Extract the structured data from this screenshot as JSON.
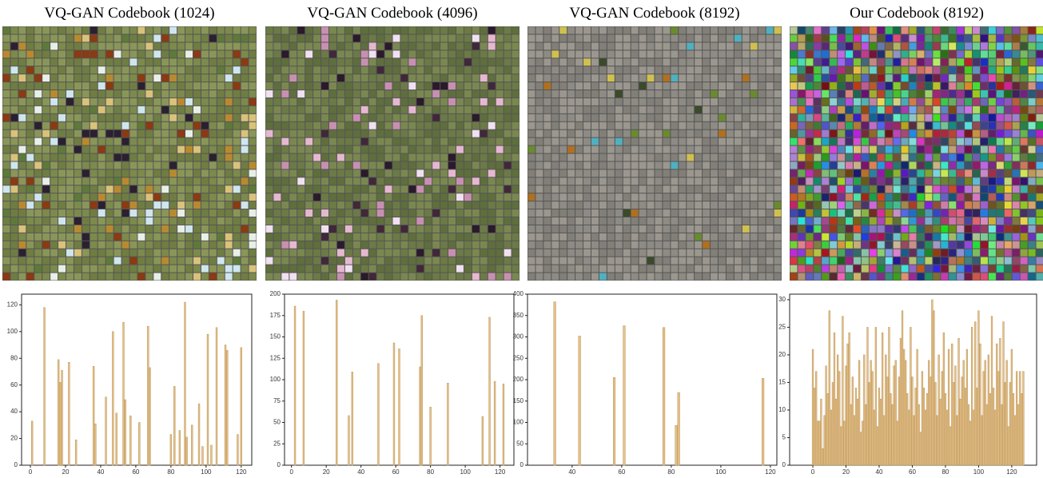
{
  "chart_data": [
    {
      "type": "bar",
      "title": "VQ-GAN Codebook (1024)",
      "color": "#e6c187",
      "x": [
        1,
        8,
        16,
        17,
        18,
        22,
        26,
        36,
        37,
        43,
        47,
        49,
        53,
        54,
        57,
        62,
        67,
        68,
        80,
        82,
        85,
        88,
        89,
        92,
        96,
        98,
        101,
        103,
        106,
        111,
        112,
        118,
        120
      ],
      "values": [
        33,
        118,
        79,
        62,
        71,
        77,
        19,
        74,
        31,
        51,
        100,
        39,
        107,
        49,
        37,
        32,
        104,
        73,
        23,
        59,
        26,
        122,
        21,
        30,
        46,
        14,
        98,
        15,
        103,
        90,
        86,
        23,
        88
      ],
      "xlim": [
        -5,
        126
      ],
      "ylim": [
        0,
        128
      ],
      "xticks": [
        0,
        20,
        40,
        60,
        80,
        100,
        120
      ],
      "yticks": [
        0,
        20,
        40,
        60,
        80,
        100,
        120
      ]
    },
    {
      "type": "bar",
      "title": "VQ-GAN Codebook (4096)",
      "color": "#e6c187",
      "x": [
        2,
        7,
        26,
        33,
        35,
        50,
        59,
        62,
        74,
        75,
        80,
        90,
        110,
        114,
        117,
        122
      ],
      "values": [
        186,
        180,
        193,
        58,
        109,
        119,
        143,
        136,
        115,
        175,
        68,
        96,
        57,
        173,
        98,
        95
      ],
      "xlim": [
        -4,
        128
      ],
      "ylim": [
        0,
        200
      ],
      "xticks": [
        0,
        20,
        40,
        60,
        80,
        100,
        120
      ],
      "yticks": [
        0,
        25,
        50,
        75,
        100,
        125,
        150,
        175,
        200
      ]
    },
    {
      "type": "bar",
      "title": "VQ-GAN Codebook (8192)",
      "color": "#e6c187",
      "x": [
        33,
        43,
        57,
        61,
        77,
        82,
        83,
        117
      ],
      "values": [
        382,
        302,
        205,
        326,
        322,
        93,
        170,
        203
      ],
      "xlim": [
        22,
        122.6
      ],
      "ylim": [
        0,
        400
      ],
      "xticks": [
        40,
        60,
        80,
        100,
        120
      ],
      "yticks": [
        0,
        50,
        100,
        150,
        200,
        250,
        300,
        350,
        400
      ]
    },
    {
      "type": "bar",
      "title": "Our Codebook (8192)",
      "color": "#e6c187",
      "x": [
        0,
        1,
        2,
        3,
        4,
        5,
        6,
        7,
        8,
        9,
        10,
        11,
        12,
        13,
        14,
        15,
        16,
        17,
        18,
        19,
        20,
        21,
        22,
        23,
        24,
        25,
        26,
        27,
        28,
        29,
        30,
        31,
        32,
        33,
        34,
        35,
        36,
        37,
        38,
        39,
        40,
        41,
        42,
        43,
        44,
        45,
        46,
        47,
        48,
        49,
        50,
        51,
        52,
        53,
        54,
        55,
        56,
        57,
        58,
        59,
        60,
        61,
        62,
        63,
        64,
        65,
        66,
        67,
        68,
        69,
        70,
        71,
        72,
        73,
        74,
        75,
        76,
        77,
        78,
        79,
        80,
        81,
        82,
        83,
        84,
        85,
        86,
        87,
        88,
        89,
        90,
        91,
        92,
        93,
        94,
        95,
        96,
        97,
        98,
        99,
        100,
        101,
        102,
        103,
        104,
        105,
        106,
        107,
        108,
        109,
        110,
        111,
        112,
        113,
        114,
        115,
        116,
        117,
        118,
        119,
        120,
        121,
        122,
        123,
        124,
        125,
        126,
        127
      ],
      "values": [
        21,
        14,
        17,
        8,
        8,
        12,
        3,
        9,
        18,
        13,
        28,
        10,
        15,
        24,
        12,
        20,
        17,
        7,
        27,
        8,
        18,
        22,
        24,
        11,
        16,
        9,
        14,
        12,
        19,
        6,
        8,
        20,
        11,
        25,
        15,
        19,
        17,
        10,
        25,
        7,
        14,
        12,
        24,
        9,
        20,
        16,
        25,
        13,
        11,
        18,
        19,
        8,
        16,
        23,
        28,
        21,
        19,
        13,
        10,
        25,
        16,
        9,
        14,
        21,
        11,
        6,
        17,
        14,
        10,
        13,
        19,
        16,
        30,
        28,
        15,
        9,
        20,
        12,
        17,
        24,
        13,
        10,
        21,
        7,
        22,
        15,
        18,
        9,
        23,
        12,
        16,
        19,
        14,
        21,
        11,
        8,
        25,
        10,
        26,
        14,
        28,
        22,
        9,
        17,
        19,
        11,
        20,
        13,
        27,
        14,
        10,
        22,
        17,
        23,
        11,
        26,
        15,
        19,
        7,
        15,
        21,
        13,
        9,
        17,
        11,
        17,
        13,
        17
      ],
      "xlim": [
        -14,
        135
      ],
      "ylim": [
        0,
        31
      ],
      "xticks": [
        0,
        20,
        40,
        60,
        80,
        100,
        120
      ],
      "yticks": [
        0,
        5,
        10,
        15,
        20,
        25,
        30
      ]
    }
  ]
}
